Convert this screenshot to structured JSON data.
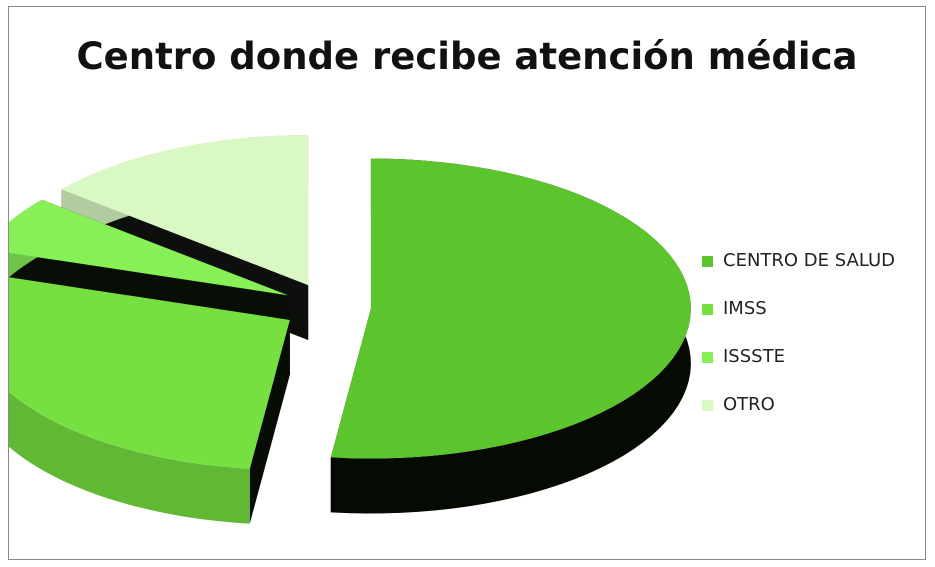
{
  "chart_data": {
    "type": "pie",
    "title": "Centro donde recibe atención médica",
    "categories": [
      "CENTRO DE SALUD",
      "IMSS",
      "ISSSTE",
      "OTRO"
    ],
    "values": [
      52,
      28,
      6,
      14
    ],
    "colors": [
      "#5cc52e",
      "#76e040",
      "#86f056",
      "#daf8c4"
    ],
    "exploded": true,
    "three_d": true,
    "legend_position": "right"
  }
}
